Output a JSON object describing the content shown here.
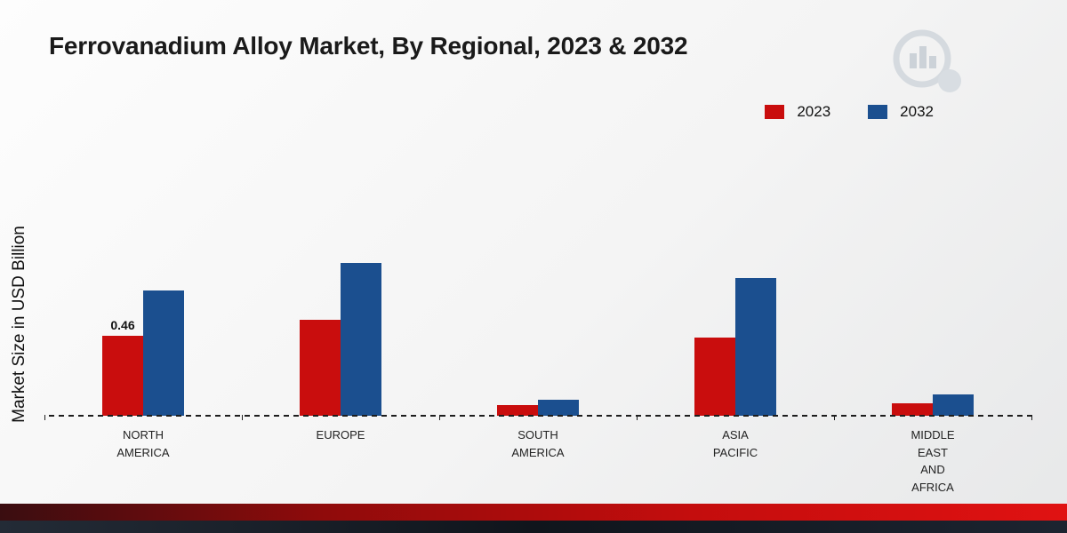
{
  "title": "Ferrovanadium Alloy Market, By Regional, 2023 & 2032",
  "icons": {
    "logo": "bar-chart-magnifier-logo-watermark"
  },
  "colors": {
    "series_2023": "#c90d0d",
    "series_2032": "#1b4f8f",
    "bottom_strip": "#c40d0d",
    "footer": "#141a22"
  },
  "chart_data": {
    "type": "bar",
    "title": "Ferrovanadium Alloy Market, By Regional, 2023 & 2032",
    "xlabel": "",
    "ylabel": "Market Size in USD Billion",
    "ylim": [
      0,
      1.0
    ],
    "grid": false,
    "legend_position": "top-right",
    "categories": [
      [
        "NORTH",
        "AMERICA"
      ],
      [
        "EUROPE"
      ],
      [
        "SOUTH",
        "AMERICA"
      ],
      [
        "ASIA",
        "PACIFIC"
      ],
      [
        "MIDDLE",
        "EAST",
        "AND",
        "AFRICA"
      ]
    ],
    "series": [
      {
        "name": "2023",
        "color": "#c90d0d",
        "values": [
          0.46,
          0.55,
          0.06,
          0.45,
          0.07
        ]
      },
      {
        "name": "2032",
        "color": "#1b4f8f",
        "values": [
          0.72,
          0.88,
          0.09,
          0.79,
          0.12
        ]
      }
    ],
    "data_labels": [
      {
        "category_index": 0,
        "series": "2023",
        "text": "0.46"
      }
    ]
  }
}
